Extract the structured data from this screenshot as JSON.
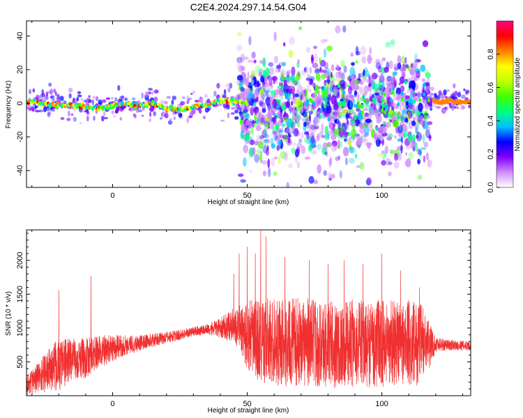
{
  "title": "C2E4.2024.297.14.54.G04",
  "chart_data": [
    {
      "type": "heatmap",
      "xlabel": "Height of straight line (km)",
      "ylabel": "Frequency (Hz)",
      "xlim": [
        -32,
        133
      ],
      "ylim": [
        -50,
        49
      ],
      "xticks": [
        0,
        50,
        100
      ],
      "yticks": [
        -40,
        -20,
        0,
        20,
        40
      ],
      "colorbar": {
        "label": "Normalized spectral amplitude",
        "range": [
          0,
          1
        ],
        "ticks": [
          0.0,
          0.2,
          0.4,
          0.6,
          0.8
        ],
        "tick_labels": [
          "0.0",
          "0.2",
          "0.4",
          "0.6",
          "0.8"
        ],
        "colors": [
          "#ffffff",
          "#d28cff",
          "#8000ff",
          "#0000ff",
          "#00c0ff",
          "#00ff80",
          "#40ff00",
          "#c0ff00",
          "#ffff00",
          "#ff8000",
          "#ff0000",
          "#ff0080"
        ]
      },
      "ridge": {
        "description_points_x": [
          -32,
          -25,
          -18,
          -10,
          -5,
          0,
          5,
          10,
          15,
          20,
          25,
          30,
          35,
          40,
          45,
          50,
          120,
          133
        ],
        "description_points_y": [
          1,
          0,
          -1,
          -2,
          -3,
          -2,
          0,
          -1,
          0,
          -3,
          -4,
          -2,
          -1,
          2,
          1,
          0,
          1,
          1
        ]
      }
    },
    {
      "type": "line",
      "xlabel": "Height of straight line (km)",
      "ylabel": "SNR (10 * v/v)",
      "xlim": [
        -32,
        133
      ],
      "ylim": [
        0,
        2450
      ],
      "xticks": [
        0,
        50,
        100
      ],
      "yticks": [
        500,
        1000,
        1500,
        2000
      ],
      "color": "#f03030",
      "envelope": {
        "x": [
          -32,
          -25,
          -20,
          -15,
          -10,
          -5,
          0,
          5,
          10,
          15,
          20,
          25,
          30,
          35,
          40,
          45,
          50,
          55,
          60,
          65,
          70,
          75,
          80,
          85,
          90,
          95,
          100,
          105,
          110,
          115,
          118,
          120,
          125,
          133
        ],
        "mean": [
          150,
          350,
          450,
          550,
          550,
          650,
          700,
          750,
          780,
          820,
          860,
          900,
          950,
          980,
          1000,
          1050,
          900,
          800,
          800,
          780,
          800,
          780,
          760,
          760,
          780,
          760,
          780,
          800,
          780,
          760,
          750,
          760,
          750,
          740
        ],
        "amp": [
          150,
          300,
          400,
          300,
          300,
          250,
          200,
          150,
          120,
          100,
          90,
          80,
          70,
          80,
          150,
          250,
          500,
          650,
          650,
          650,
          650,
          650,
          650,
          650,
          650,
          650,
          650,
          650,
          650,
          600,
          300,
          120,
          80,
          70
        ]
      },
      "spikes": [
        {
          "x": -20,
          "y": 1560
        },
        {
          "x": -8,
          "y": 1770
        },
        {
          "x": 45,
          "y": 1800
        },
        {
          "x": 47,
          "y": 2100
        },
        {
          "x": 50,
          "y": 2200
        },
        {
          "x": 53,
          "y": 2100
        },
        {
          "x": 55,
          "y": 2450
        },
        {
          "x": 57,
          "y": 2350
        },
        {
          "x": 64,
          "y": 2050
        },
        {
          "x": 73,
          "y": 2000
        },
        {
          "x": 80,
          "y": 1950
        },
        {
          "x": 86,
          "y": 2000
        },
        {
          "x": 93,
          "y": 1950
        },
        {
          "x": 100,
          "y": 2100
        },
        {
          "x": 107,
          "y": 1850
        },
        {
          "x": 114,
          "y": 1600
        }
      ]
    }
  ]
}
